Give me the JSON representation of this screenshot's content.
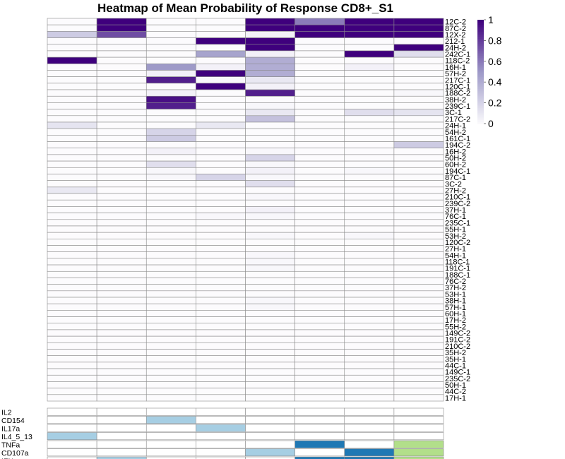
{
  "chart_data": {
    "type": "heatmap",
    "title": "Heatmap of Mean Probability of Response CD8+_S1",
    "colorscale": {
      "min": 0,
      "max": 1,
      "ticks": [
        "1",
        "0.8",
        "0.6",
        "0.4",
        "0.2",
        "0"
      ],
      "low_color": "#fcfbfd",
      "mid_color": "#9e9ac8",
      "high_color": "#3f007d"
    },
    "columns": 8,
    "rows": [
      "12C-2",
      "87C-2",
      "12X-2",
      "212-1",
      "24H-2",
      "242C-1",
      "118C-2",
      "16H-1",
      "57H-2",
      "217C-1",
      "120C-1",
      "188C-2",
      "38H-2",
      "239C-1",
      "3C-1",
      "217C-2",
      "24H-1",
      "54H-2",
      "161C-1",
      "194C-2",
      "16H-2",
      "50H-2",
      "60H-2",
      "194C-1",
      "87C-1",
      "3C-2",
      "27H-2",
      "210C-1",
      "239C-2",
      "37H-1",
      "76C-1",
      "235C-1",
      "55H-1",
      "53H-2",
      "120C-2",
      "27H-1",
      "54H-1",
      "118C-1",
      "191C-1",
      "188C-1",
      "76C-2",
      "37H-2",
      "53H-1",
      "38H-1",
      "57H-1",
      "60H-1",
      "17H-2",
      "55H-2",
      "149C-2",
      "191C-2",
      "210C-2",
      "35H-2",
      "35H-1",
      "44C-1",
      "149C-1",
      "235C-2",
      "50H-1",
      "44C-2",
      "17H-1"
    ],
    "values": [
      [
        0,
        1,
        0,
        0,
        1,
        0.6,
        1,
        1
      ],
      [
        0,
        1,
        0,
        0,
        1,
        1,
        1,
        1
      ],
      [
        0.25,
        0.75,
        0,
        0,
        0.05,
        1,
        1,
        1
      ],
      [
        0,
        0,
        0,
        1,
        1,
        0,
        0,
        0
      ],
      [
        0,
        0,
        0,
        0,
        1,
        0,
        0,
        1
      ],
      [
        0,
        0,
        0,
        0.45,
        0.05,
        0,
        1,
        0.15
      ],
      [
        1,
        0,
        0,
        0,
        0.4,
        0,
        0,
        0
      ],
      [
        0,
        0,
        0.5,
        0.05,
        0.4,
        0,
        0.05,
        0
      ],
      [
        0,
        0,
        0.05,
        1,
        0.4,
        0,
        0,
        0
      ],
      [
        0,
        0,
        0.9,
        0.02,
        0.1,
        0,
        0,
        0
      ],
      [
        0,
        0,
        0,
        1,
        0.05,
        0,
        0,
        0
      ],
      [
        0,
        0,
        0.05,
        0,
        0.9,
        0,
        0,
        0.02
      ],
      [
        0,
        0,
        0.95,
        0,
        0,
        0,
        0,
        0
      ],
      [
        0,
        0,
        0.9,
        0,
        0.02,
        0,
        0,
        0
      ],
      [
        0,
        0,
        0,
        0,
        0.1,
        0,
        0.15,
        0.12
      ],
      [
        0,
        0,
        0,
        0,
        0.3,
        0,
        0,
        0
      ],
      [
        0.12,
        0,
        0,
        0.1,
        0,
        0,
        0,
        0
      ],
      [
        0,
        0,
        0.2,
        0,
        0,
        0,
        0,
        0
      ],
      [
        0,
        0,
        0.25,
        0,
        0,
        0,
        0,
        0
      ],
      [
        0,
        0,
        0,
        0,
        0,
        0,
        0,
        0.25
      ],
      [
        0,
        0,
        0.05,
        0,
        0.02,
        0,
        0,
        0
      ],
      [
        0,
        0,
        0,
        0,
        0.2,
        0,
        0,
        0
      ],
      [
        0,
        0,
        0.15,
        0,
        0.02,
        0,
        0,
        0
      ],
      [
        0,
        0,
        0.02,
        0,
        0.05,
        0,
        0.02,
        0
      ],
      [
        0,
        0,
        0.02,
        0.2,
        0.02,
        0,
        0,
        0
      ],
      [
        0,
        0,
        0,
        0,
        0.15,
        0,
        0,
        0
      ],
      [
        0.1,
        0,
        0,
        0,
        0,
        0,
        0,
        0
      ],
      [
        0,
        0,
        0,
        0,
        0.02,
        0,
        0,
        0
      ],
      [
        0,
        0,
        0,
        0,
        0,
        0,
        0,
        0
      ],
      [
        0,
        0,
        0,
        0,
        0.05,
        0,
        0,
        0
      ],
      [
        0,
        0,
        0,
        0.02,
        0.02,
        0,
        0,
        0
      ],
      [
        0,
        0,
        0,
        0,
        0,
        0,
        0,
        0
      ],
      [
        0,
        0,
        0,
        0,
        0,
        0,
        0,
        0
      ],
      [
        0,
        0,
        0,
        0,
        0.02,
        0,
        0.02,
        0
      ],
      [
        0,
        0,
        0,
        0,
        0,
        0,
        0,
        0
      ],
      [
        0,
        0,
        0,
        0,
        0,
        0,
        0,
        0
      ],
      [
        0,
        0,
        0,
        0,
        0.02,
        0,
        0,
        0
      ],
      [
        0,
        0,
        0,
        0,
        0.02,
        0,
        0,
        0
      ],
      [
        0,
        0,
        0,
        0,
        0.02,
        0,
        0,
        0
      ],
      [
        0,
        0,
        0,
        0,
        0,
        0,
        0,
        0
      ],
      [
        0,
        0,
        0,
        0,
        0,
        0,
        0,
        0
      ],
      [
        0,
        0,
        0,
        0,
        0,
        0,
        0,
        0
      ],
      [
        0,
        0,
        0,
        0,
        0,
        0,
        0,
        0
      ],
      [
        0,
        0,
        0,
        0,
        0.02,
        0,
        0,
        0
      ],
      [
        0,
        0,
        0,
        0,
        0.02,
        0,
        0,
        0
      ],
      [
        0,
        0,
        0,
        0,
        0,
        0,
        0,
        0
      ],
      [
        0,
        0,
        0,
        0,
        0,
        0,
        0,
        0
      ],
      [
        0,
        0,
        0,
        0,
        0,
        0,
        0,
        0
      ],
      [
        0,
        0,
        0,
        0,
        0,
        0,
        0,
        0
      ],
      [
        0,
        0,
        0,
        0,
        0,
        0,
        0,
        0
      ],
      [
        0,
        0,
        0,
        0,
        0,
        0,
        0,
        0
      ],
      [
        0,
        0,
        0,
        0,
        0,
        0,
        0,
        0
      ],
      [
        0,
        0,
        0,
        0,
        0,
        0,
        0,
        0
      ],
      [
        0,
        0,
        0,
        0,
        0,
        0,
        0,
        0
      ],
      [
        0,
        0,
        0,
        0,
        0,
        0,
        0,
        0
      ],
      [
        0,
        0,
        0,
        0,
        0,
        0,
        0,
        0
      ],
      [
        0,
        0,
        0,
        0,
        0,
        0,
        0,
        0
      ],
      [
        0,
        0,
        0,
        0,
        0,
        0,
        0,
        0
      ],
      [
        0,
        0,
        0,
        0,
        0,
        0,
        0,
        0
      ]
    ],
    "annotation": {
      "rows": [
        "IL2",
        "CD154",
        "IL17a",
        "IL4_5_13",
        "TNFa",
        "CD107a",
        "IFNg"
      ],
      "colors": {
        "light_blue": "#a6cee3",
        "dark_blue": "#1f78b4",
        "light_green": "#b2df8a",
        "empty": "#ffffff"
      },
      "cells": [
        [
          "empty",
          "empty",
          "empty",
          "empty",
          "empty",
          "empty",
          "empty",
          "empty"
        ],
        [
          "empty",
          "empty",
          "light_blue",
          "empty",
          "empty",
          "empty",
          "empty",
          "empty"
        ],
        [
          "empty",
          "empty",
          "empty",
          "light_blue",
          "empty",
          "empty",
          "empty",
          "empty"
        ],
        [
          "light_blue",
          "empty",
          "empty",
          "empty",
          "empty",
          "empty",
          "empty",
          "empty"
        ],
        [
          "empty",
          "empty",
          "empty",
          "empty",
          "empty",
          "dark_blue",
          "empty",
          "light_green"
        ],
        [
          "empty",
          "empty",
          "empty",
          "empty",
          "light_blue",
          "empty",
          "dark_blue",
          "light_green"
        ],
        [
          "empty",
          "light_blue",
          "empty",
          "empty",
          "empty",
          "dark_blue",
          "dark_blue",
          "light_green"
        ]
      ]
    }
  }
}
